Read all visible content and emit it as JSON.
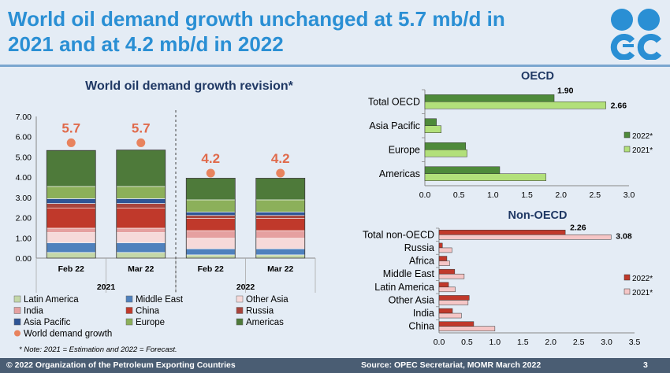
{
  "header": {
    "title_line1": "World oil demand growth unchanged at 5.7 mb/d in",
    "title_line2": "2021 and at 4.2 mb/d in 2022"
  },
  "logo": {
    "icon": "opec-logo"
  },
  "footer": {
    "copyright": "© 2022 Organization of the Petroleum Exporting Countries",
    "source": "Source: OPEC Secretariat, MOMR March 2022",
    "page": "3"
  },
  "note": "* Note: 2021 = Estimation and 2022 = Forecast.",
  "colors": {
    "Latin America": "#c4d7a8",
    "Middle East": "#4f81bd",
    "Other Asia": "#f6d9d9",
    "India": "#e5a0a0",
    "China": "#c0392b",
    "Russia": "#a8443c",
    "Asia Pacific": "#2e5596",
    "Europe": "#8cb05a",
    "Americas": "#4e7a3a",
    "World demand growth": "#e8835e",
    "oecd_2022": "#4e8a3a",
    "oecd_2021": "#b2e07a",
    "nonoecd_2022": "#c0392b",
    "nonoecd_2021": "#f5c6c6"
  },
  "chart_data": [
    {
      "type": "bar",
      "stacked": true,
      "title": "World oil demand growth revision*",
      "categories": [
        "Feb 22",
        "Mar 22",
        "Feb 22",
        "Mar 22"
      ],
      "groups": [
        "2021",
        "2022"
      ],
      "ylim": [
        0,
        7
      ],
      "yticks": [
        "0.00",
        "1.00",
        "2.00",
        "3.00",
        "4.00",
        "5.00",
        "6.00",
        "7.00"
      ],
      "series": [
        {
          "name": "Latin America",
          "values": [
            0.28,
            0.28,
            0.16,
            0.16
          ]
        },
        {
          "name": "Middle East",
          "values": [
            0.48,
            0.48,
            0.3,
            0.3
          ]
        },
        {
          "name": "Other Asia",
          "values": [
            0.5,
            0.5,
            0.52,
            0.52
          ]
        },
        {
          "name": "India",
          "values": [
            0.22,
            0.22,
            0.38,
            0.38
          ]
        },
        {
          "name": "China",
          "values": [
            1.0,
            1.0,
            0.6,
            0.6
          ]
        },
        {
          "name": "Russia",
          "values": [
            0.22,
            0.22,
            0.15,
            0.15
          ]
        },
        {
          "name": "Asia Pacific",
          "values": [
            0.24,
            0.24,
            0.17,
            0.17
          ]
        },
        {
          "name": "Europe",
          "values": [
            0.6,
            0.6,
            0.6,
            0.6
          ]
        },
        {
          "name": "Americas",
          "values": [
            1.78,
            1.8,
            1.07,
            1.07
          ]
        }
      ],
      "world_demand_growth": {
        "name": "World demand growth",
        "values": [
          5.7,
          5.7,
          4.2,
          4.2
        ],
        "labels": [
          "5.7",
          "5.7",
          "4.2",
          "4.2"
        ]
      },
      "legend": [
        "Latin America",
        "Middle East",
        "Other Asia",
        "India",
        "China",
        "Russia",
        "Asia Pacific",
        "Europe",
        "Americas",
        "World demand growth"
      ]
    },
    {
      "type": "bar",
      "orientation": "horizontal",
      "title": "OECD",
      "categories": [
        "Total OECD",
        "Asia Pacific",
        "Europe",
        "Americas"
      ],
      "xlim": [
        0,
        3
      ],
      "xticks": [
        "0.0",
        "0.5",
        "1.0",
        "1.5",
        "2.0",
        "2.5",
        "3.0"
      ],
      "series": [
        {
          "name": "2022*",
          "values": [
            1.9,
            0.17,
            0.6,
            1.1
          ]
        },
        {
          "name": "2021*",
          "values": [
            2.66,
            0.24,
            0.62,
            1.78
          ]
        }
      ],
      "data_labels": {
        "2022*": "1.90",
        "2021*": "2.66"
      }
    },
    {
      "type": "bar",
      "orientation": "horizontal",
      "title": "Non-OECD",
      "categories": [
        "Total non-OECD",
        "Russia",
        "Africa",
        "Middle East",
        "Latin America",
        "Other Asia",
        "India",
        "China"
      ],
      "xlim": [
        0,
        3.5
      ],
      "xticks": [
        "0.0",
        "0.5",
        "1.0",
        "1.5",
        "2.0",
        "2.5",
        "3.0",
        "3.5"
      ],
      "series": [
        {
          "name": "2022*",
          "values": [
            2.26,
            0.06,
            0.14,
            0.28,
            0.17,
            0.54,
            0.24,
            0.62
          ]
        },
        {
          "name": "2021*",
          "values": [
            3.08,
            0.23,
            0.19,
            0.45,
            0.29,
            0.52,
            0.4,
            1.0
          ]
        }
      ],
      "data_labels": {
        "2022*": "2.26",
        "2021*": "3.08"
      }
    }
  ]
}
